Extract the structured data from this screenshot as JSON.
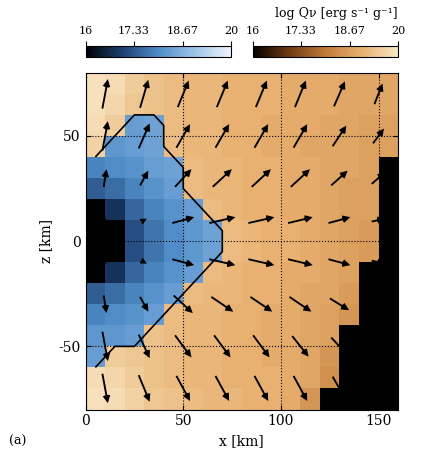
{
  "chart_data": {
    "type": "heatmap",
    "xlabel": "x [km]",
    "ylabel": "z [km]",
    "panel_label": "(a)",
    "xlim": [
      0,
      160
    ],
    "ylim": [
      -80,
      80
    ],
    "xticks": [
      0,
      50,
      100,
      150
    ],
    "yticks": [
      -50,
      0,
      50
    ],
    "grid": true,
    "colorbar_label": "log Qν [erg s⁻¹ g⁻¹]",
    "clim": [
      16,
      20
    ],
    "colorbar_ticks": [
      16,
      17.33,
      18.67,
      20
    ],
    "x": [
      5,
      15,
      25,
      35,
      45,
      55,
      65,
      75,
      85,
      95,
      105,
      115,
      125,
      135,
      145,
      155
    ],
    "y": [
      -75,
      -65,
      -55,
      -45,
      -35,
      -25,
      -15,
      -5,
      5,
      15,
      25,
      35,
      45,
      55,
      65,
      75
    ],
    "heating_cells": [
      [
        19.9,
        19.8,
        19.6,
        19.4,
        19.3,
        19.2,
        19.1,
        19.1,
        19.0,
        19.0,
        18.9,
        18.5,
        15.5,
        15.5,
        15.5,
        15.5
      ],
      [
        19.8,
        19.7,
        19.5,
        19.3,
        19.2,
        19.1,
        19.1,
        19.0,
        19.0,
        19.0,
        18.9,
        18.8,
        18.4,
        15.5,
        15.5,
        15.5
      ],
      [
        null,
        19.5,
        19.4,
        19.3,
        19.2,
        19.1,
        19.1,
        19.0,
        19.0,
        18.9,
        18.9,
        18.8,
        18.5,
        15.5,
        15.5,
        15.5
      ],
      [
        null,
        null,
        null,
        19.3,
        19.2,
        19.1,
        19.1,
        19.0,
        19.0,
        18.9,
        18.9,
        18.8,
        18.7,
        15.5,
        15.5,
        15.5
      ],
      [
        null,
        null,
        null,
        null,
        19.2,
        19.1,
        19.1,
        19.0,
        19.0,
        18.9,
        18.9,
        18.8,
        18.7,
        18.5,
        15.5,
        15.5
      ],
      [
        null,
        null,
        null,
        null,
        null,
        19.2,
        19.1,
        19.1,
        19.0,
        19.0,
        18.9,
        18.8,
        18.8,
        18.6,
        15.5,
        15.5
      ],
      [
        null,
        null,
        null,
        null,
        null,
        null,
        19.2,
        19.1,
        19.0,
        19.0,
        18.9,
        18.9,
        18.8,
        18.7,
        15.5,
        15.5
      ],
      [
        null,
        null,
        null,
        null,
        null,
        null,
        null,
        19.2,
        19.1,
        19.0,
        19.0,
        18.9,
        18.8,
        18.7,
        18.6,
        15.5
      ],
      [
        null,
        null,
        null,
        null,
        null,
        null,
        null,
        19.2,
        19.1,
        19.0,
        19.0,
        18.9,
        18.8,
        18.7,
        18.6,
        15.5
      ],
      [
        null,
        null,
        null,
        null,
        null,
        null,
        19.2,
        19.1,
        19.0,
        19.0,
        18.9,
        18.9,
        18.8,
        18.7,
        18.7,
        15.5
      ],
      [
        null,
        null,
        null,
        null,
        null,
        19.2,
        19.1,
        19.1,
        19.0,
        19.0,
        18.9,
        18.9,
        18.8,
        18.7,
        18.7,
        15.5
      ],
      [
        null,
        null,
        null,
        null,
        null,
        19.2,
        19.1,
        19.1,
        19.0,
        19.0,
        18.9,
        18.9,
        18.8,
        18.8,
        18.7,
        15.5
      ],
      [
        19.6,
        null,
        null,
        null,
        19.2,
        19.1,
        19.1,
        19.0,
        19.0,
        18.9,
        18.9,
        18.8,
        18.8,
        18.8,
        18.7,
        18.7
      ],
      [
        19.8,
        19.5,
        null,
        null,
        19.2,
        19.1,
        19.1,
        19.0,
        19.0,
        18.9,
        18.9,
        18.9,
        18.8,
        18.8,
        18.7,
        18.7
      ],
      [
        19.9,
        19.7,
        19.4,
        19.3,
        19.2,
        19.1,
        19.1,
        19.0,
        19.0,
        19.0,
        18.9,
        18.9,
        18.9,
        18.8,
        18.8,
        18.8
      ],
      [
        19.9,
        19.8,
        19.5,
        19.3,
        19.2,
        19.1,
        19.1,
        19.0,
        19.0,
        19.0,
        18.9,
        18.9,
        18.9,
        18.8,
        18.8,
        18.8
      ]
    ],
    "cooling_cells": [
      [
        null,
        null,
        null,
        null,
        null,
        null,
        null,
        null,
        null,
        null,
        null,
        null,
        null,
        null,
        null,
        null
      ],
      [
        null,
        null,
        null,
        null,
        null,
        null,
        null,
        null,
        null,
        null,
        null,
        null,
        null,
        null,
        null,
        null
      ],
      [
        18.3,
        null,
        null,
        null,
        null,
        null,
        null,
        null,
        null,
        null,
        null,
        null,
        null,
        null,
        null,
        null
      ],
      [
        18.2,
        18.2,
        18.3,
        null,
        null,
        null,
        null,
        null,
        null,
        null,
        null,
        null,
        null,
        null,
        null,
        null
      ],
      [
        17.9,
        18.0,
        18.1,
        18.3,
        null,
        null,
        null,
        null,
        null,
        null,
        null,
        null,
        null,
        null,
        null,
        null
      ],
      [
        17.4,
        17.6,
        17.9,
        18.1,
        18.3,
        null,
        null,
        null,
        null,
        null,
        null,
        null,
        null,
        null,
        null,
        null
      ],
      [
        15.5,
        16.8,
        17.5,
        17.9,
        18.1,
        18.3,
        null,
        null,
        null,
        null,
        null,
        null,
        null,
        null,
        null,
        null
      ],
      [
        15.5,
        15.5,
        17.2,
        17.7,
        18.0,
        18.2,
        18.4,
        null,
        null,
        null,
        null,
        null,
        null,
        null,
        null,
        null
      ],
      [
        15.5,
        15.5,
        17.2,
        17.7,
        18.0,
        18.2,
        18.4,
        null,
        null,
        null,
        null,
        null,
        null,
        null,
        null,
        null
      ],
      [
        15.5,
        16.8,
        17.5,
        17.9,
        18.1,
        18.3,
        null,
        null,
        null,
        null,
        null,
        null,
        null,
        null,
        null,
        null
      ],
      [
        17.4,
        17.6,
        17.9,
        18.1,
        18.3,
        null,
        null,
        null,
        null,
        null,
        null,
        null,
        null,
        null,
        null,
        null
      ],
      [
        17.9,
        18.0,
        18.1,
        18.3,
        18.4,
        null,
        null,
        null,
        null,
        null,
        null,
        null,
        null,
        null,
        null,
        null
      ],
      [
        null,
        18.2,
        18.3,
        18.4,
        null,
        null,
        null,
        null,
        null,
        null,
        null,
        null,
        null,
        null,
        null,
        null
      ],
      [
        null,
        null,
        18.3,
        18.4,
        null,
        null,
        null,
        null,
        null,
        null,
        null,
        null,
        null,
        null,
        null,
        null
      ],
      [
        null,
        null,
        null,
        null,
        null,
        null,
        null,
        null,
        null,
        null,
        null,
        null,
        null,
        null,
        null,
        null
      ],
      [
        null,
        null,
        null,
        null,
        null,
        null,
        null,
        null,
        null,
        null,
        null,
        null,
        null,
        null,
        null,
        null
      ]
    ],
    "velocity_x": [
      10,
      30,
      50,
      70,
      90,
      110,
      130,
      150
    ],
    "velocity_z": [
      -70,
      -50,
      -30,
      -10,
      10,
      30,
      50,
      70
    ],
    "velocity_u": [
      [
        0.2,
        0.4,
        0.5,
        0.5,
        0.5,
        0.5,
        0.5,
        0.4
      ],
      [
        0.2,
        0.4,
        0.6,
        0.6,
        0.6,
        0.6,
        0.6,
        0.4
      ],
      [
        0.1,
        0.3,
        0.7,
        0.8,
        0.8,
        0.8,
        0.7,
        0.5
      ],
      [
        0.1,
        0.2,
        0.8,
        0.95,
        0.95,
        0.9,
        0.8,
        0.5
      ],
      [
        0.1,
        0.2,
        0.8,
        0.95,
        0.95,
        0.9,
        0.8,
        0.5
      ],
      [
        0.1,
        0.3,
        0.6,
        0.7,
        0.7,
        0.7,
        0.6,
        0.5
      ],
      [
        0.2,
        0.4,
        0.5,
        0.5,
        0.5,
        0.5,
        0.5,
        0.4
      ],
      [
        0.2,
        0.3,
        0.4,
        0.4,
        0.4,
        0.4,
        0.4,
        0.3
      ]
    ],
    "velocity_v": [
      [
        -1,
        -0.9,
        -0.85,
        -0.85,
        -0.85,
        -0.85,
        -0.8,
        -0.6
      ],
      [
        -1,
        -0.8,
        -0.75,
        -0.75,
        -0.75,
        -0.7,
        -0.6,
        -0.4
      ],
      [
        -0.6,
        -0.5,
        -0.6,
        -0.5,
        -0.5,
        -0.5,
        -0.4,
        -0.3
      ],
      [
        -0.1,
        -0.1,
        -0.2,
        -0.2,
        -0.2,
        -0.2,
        -0.2,
        -0.1
      ],
      [
        0.1,
        0.1,
        0.2,
        0.2,
        0.2,
        0.2,
        0.2,
        0.1
      ],
      [
        0.6,
        0.5,
        0.6,
        0.6,
        0.6,
        0.6,
        0.5,
        0.4
      ],
      [
        1,
        0.85,
        0.8,
        0.8,
        0.8,
        0.8,
        0.7,
        0.5
      ],
      [
        1,
        0.95,
        0.9,
        0.9,
        0.9,
        0.9,
        0.85,
        0.7
      ]
    ]
  }
}
